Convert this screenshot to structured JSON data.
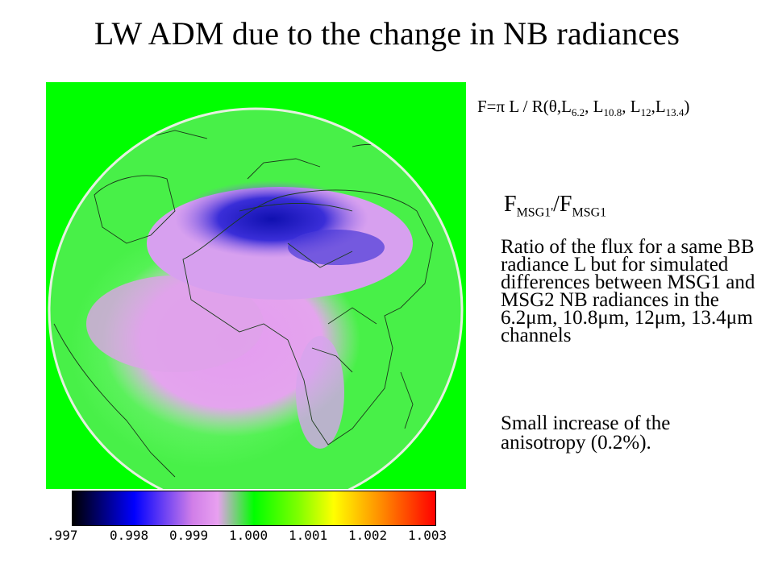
{
  "slide": {
    "title": "LW ADM due to the change in NB radiances",
    "formula": {
      "prefix": "F=π L / R(θ,L",
      "sub1": "6.2",
      "sep1": ", L",
      "sub2": "10.8",
      "sep2": ", L",
      "sub3": "12",
      "sep3": ",L",
      "sub4": "13.4",
      "suffix": ")"
    },
    "ratio_label": {
      "f1": "F",
      "sub1": "MSG1'",
      "mid": "/F",
      "sub2": "MSG1"
    },
    "description": "Ratio of the flux for a same BB radiance L but for simulated differences between MSG1 and MSG2 NB radiances in the 6.2μm, 10.8μm, 12μm, 13.4μm channels",
    "note": "Small increase of the anisotropy (0.2%).",
    "colorbar_ticks": [
      ".997",
      "0.998",
      "0.999",
      "1.000",
      "1.001",
      "1.002",
      "1.003"
    ]
  },
  "colors": {
    "background_green": "#00ff00",
    "dark_blue": "#0000cc",
    "pink": "#e8a0f0",
    "yellow": "#ffff00",
    "orange": "#ff8c00",
    "red": "#ff0000"
  }
}
